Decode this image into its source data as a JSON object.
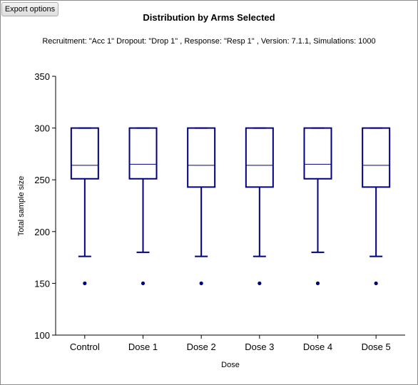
{
  "toolbar": {
    "export_label": "Export options"
  },
  "chart_data": {
    "type": "box",
    "title": "Distribution by Arms Selected",
    "subtitle": "Recruitment: \"Acc 1\" Dropout: \"Drop 1\" , Response: \"Resp 1\" , Version: 7.1.1, Simulations: 1000",
    "xlabel": "Dose",
    "ylabel": "Total sample size",
    "ylim": [
      100,
      350
    ],
    "yticks": [
      100,
      150,
      200,
      250,
      300,
      350
    ],
    "categories": [
      "Control",
      "Dose 1",
      "Dose 2",
      "Dose 3",
      "Dose 4",
      "Dose 5"
    ],
    "boxes": [
      {
        "whisker_low": 176,
        "q1": 251,
        "median": 264,
        "q3": 300,
        "whisker_high": 300,
        "outliers": [
          150
        ]
      },
      {
        "whisker_low": 180,
        "q1": 251,
        "median": 265,
        "q3": 300,
        "whisker_high": 300,
        "outliers": [
          150
        ]
      },
      {
        "whisker_low": 176,
        "q1": 243,
        "median": 264,
        "q3": 300,
        "whisker_high": 300,
        "outliers": [
          150
        ]
      },
      {
        "whisker_low": 176,
        "q1": 243,
        "median": 264,
        "q3": 300,
        "whisker_high": 300,
        "outliers": [
          150
        ]
      },
      {
        "whisker_low": 180,
        "q1": 251,
        "median": 265,
        "q3": 300,
        "whisker_high": 300,
        "outliers": [
          150
        ]
      },
      {
        "whisker_low": 176,
        "q1": 243,
        "median": 264,
        "q3": 300,
        "whisker_high": 300,
        "outliers": [
          150
        ]
      }
    ],
    "color": "#000080",
    "grid": false,
    "legend": "none"
  }
}
